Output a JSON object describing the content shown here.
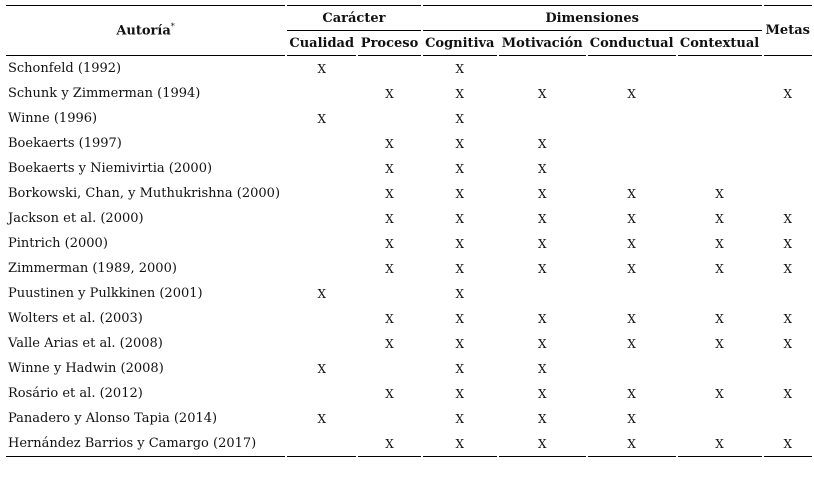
{
  "table": {
    "header": {
      "author": "Autoría",
      "author_note": "*",
      "groups": [
        "Carácter",
        "Dimensiones"
      ],
      "goals": "Metas",
      "columns": [
        "Cualidad",
        "Proceso",
        "Cognitiva",
        "Motivación",
        "Conductual",
        "Contextual"
      ]
    },
    "rows": [
      [
        "Schonfeld (1992)",
        "X",
        null,
        "X",
        null,
        null,
        null,
        null
      ],
      [
        "Schunk y Zimmerman (1994)",
        null,
        "X",
        "X",
        "X",
        "X",
        null,
        "X"
      ],
      [
        "Winne (1996)",
        "X",
        null,
        "X",
        null,
        null,
        null,
        null
      ],
      [
        "Boekaerts (1997)",
        null,
        "X",
        "X",
        "X",
        null,
        null,
        null
      ],
      [
        "Boekaerts y Niemivirtia (2000)",
        null,
        "X",
        "X",
        "X",
        null,
        null,
        null
      ],
      [
        "Borkowski, Chan, y Muthukrishna (2000)",
        null,
        "X",
        "X",
        "X",
        "X",
        "X",
        null
      ],
      [
        "Jackson et al. (2000)",
        null,
        "X",
        "X",
        "X",
        "X",
        "X",
        "X"
      ],
      [
        "Pintrich (2000)",
        null,
        "X",
        "X",
        "X",
        "X",
        "X",
        "X"
      ],
      [
        "Zimmerman (1989, 2000)",
        null,
        "X",
        "X",
        "X",
        "X",
        "X",
        "X"
      ],
      [
        "Puustinen y Pulkkinen (2001)",
        "X",
        null,
        "X",
        null,
        null,
        null,
        null
      ],
      [
        "Wolters et al. (2003)",
        null,
        "X",
        "X",
        "X",
        "X",
        "X",
        "X"
      ],
      [
        "Valle Arias et al. (2008)",
        null,
        "X",
        "X",
        "X",
        "X",
        "X",
        "X"
      ],
      [
        "Winne y Hadwin (2008)",
        "X",
        null,
        "X",
        "X",
        null,
        null,
        null
      ],
      [
        "Rosário et al. (2012)",
        null,
        "X",
        "X",
        "X",
        "X",
        "X",
        "X"
      ],
      [
        "Panadero y Alonso Tapia (2014)",
        "X",
        null,
        "X",
        "X",
        "X",
        null,
        null
      ],
      [
        "Hernández Barrios y Camargo (2017)",
        null,
        "X",
        "X",
        "X",
        "X",
        "X",
        "X"
      ]
    ]
  }
}
